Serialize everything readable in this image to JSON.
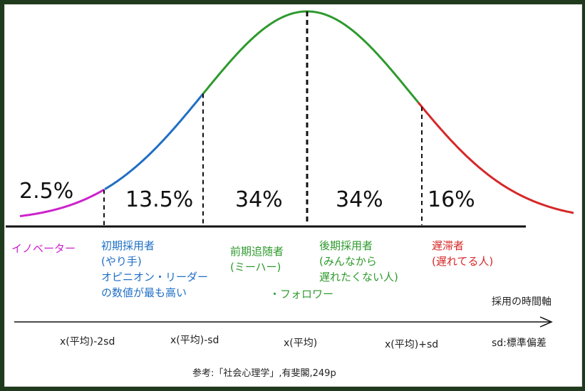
{
  "colors": {
    "innovators": "#cc22cc",
    "early_adopters": "#1f6fc5",
    "early_majority": "#2e9a2e",
    "late_majority": "#2e9a2e",
    "laggards": "#d62828",
    "axis": "#111111"
  },
  "percentages": [
    "2.5%",
    "13.5%",
    "34%",
    "34%",
    "16%"
  ],
  "segments": {
    "innovators": {
      "label": "イノベーター"
    },
    "early_adopters": {
      "label": "初期採用者",
      "sub": "(やり手)",
      "extra1": "オピニオン・リーダー",
      "extra2": "の数値が最も高い"
    },
    "early_majority": {
      "label": "前期追随者",
      "sub": "(ミーハー)"
    },
    "follower_note": "・フォロワー",
    "late_majority": {
      "label": "後期採用者",
      "sub1": "(みんなから",
      "sub2": "遅れたくない人)"
    },
    "laggards": {
      "label": "遅滞者",
      "sub": "(遅れてる人)"
    }
  },
  "axis": {
    "title": "採用の時間軸",
    "ticks": [
      "x(平均)-2sd",
      "x(平均)-sd",
      "x(平均)",
      "x(平均)+sd",
      "sd:標準偏差"
    ]
  },
  "reference": "参考:「社会心理学」,有斐閣,249p"
}
